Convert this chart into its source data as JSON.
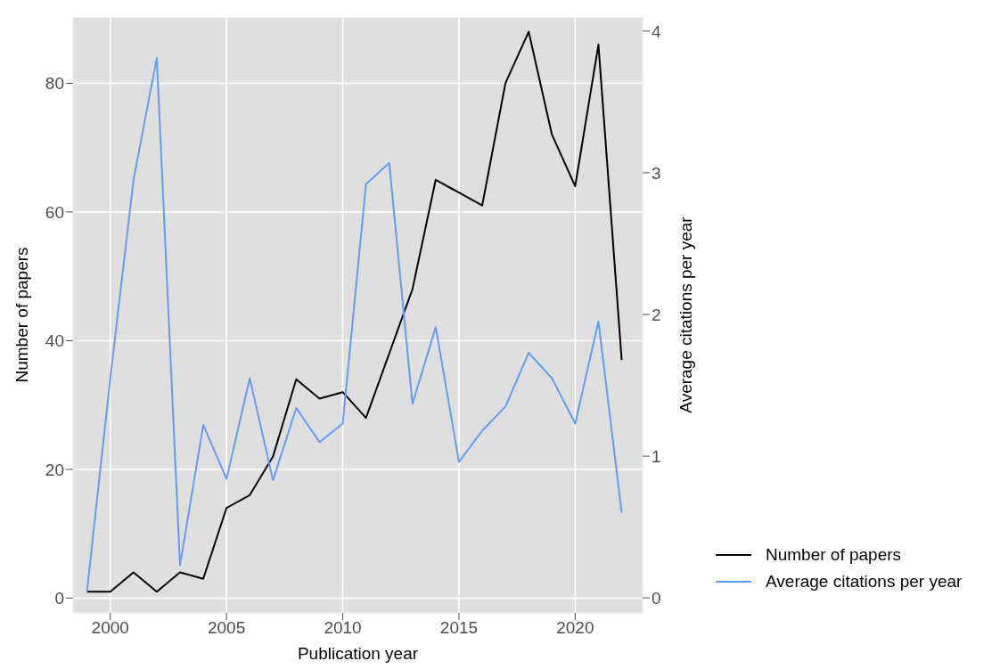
{
  "chart_data": {
    "type": "line",
    "xlabel": "Publication year",
    "ylabel": "Number of papers",
    "y2label": "Average citations per year",
    "x": [
      1999,
      2000,
      2001,
      2002,
      2003,
      2004,
      2005,
      2006,
      2007,
      2008,
      2009,
      2010,
      2011,
      2012,
      2013,
      2014,
      2015,
      2016,
      2017,
      2018,
      2019,
      2020,
      2021,
      2022
    ],
    "series": [
      {
        "name": "Number of papers",
        "color": "#000000",
        "values": [
          1,
          1,
          4,
          1,
          4,
          3,
          14,
          16,
          22,
          34,
          31,
          32,
          28,
          38,
          48,
          65,
          63,
          61,
          80,
          88,
          72,
          64,
          86,
          37
        ]
      },
      {
        "name": "Average citations per year",
        "color": "#619cff",
        "axis": "y2",
        "values": [
          0.05,
          1.55,
          2.95,
          3.81,
          0.23,
          1.22,
          0.84,
          1.55,
          0.83,
          1.34,
          1.1,
          1.23,
          2.92,
          3.07,
          1.37,
          1.91,
          0.96,
          1.18,
          1.35,
          1.73,
          1.55,
          1.23,
          1.95,
          0.6
        ]
      }
    ],
    "xlim": [
      1998.4,
      2022.9
    ],
    "xticks": [
      2000,
      2005,
      2010,
      2015,
      2020
    ],
    "ylim": [
      -2.3,
      90.3
    ],
    "yticks": [
      0,
      20,
      40,
      60,
      80
    ],
    "y2lim": [
      -0.106,
      4.1
    ],
    "y2ticks": [
      0,
      1,
      2,
      3,
      4
    ],
    "grid": true,
    "legend": "right",
    "marker": "none",
    "line_style": "solid"
  }
}
